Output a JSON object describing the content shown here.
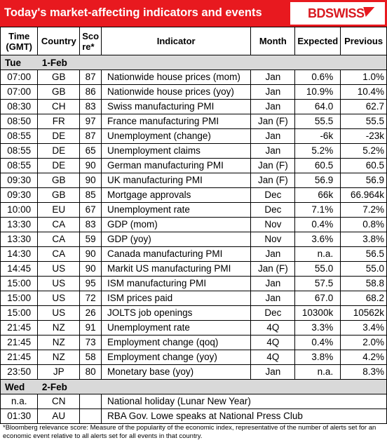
{
  "header": {
    "title": "Today's market-affecting indicators and events",
    "logo": "BDSWISS",
    "brand_color": "#e8191f"
  },
  "columns": {
    "time": "Time\n(GMT)",
    "country": "Country",
    "score": "Sco\nre*",
    "indicator": "Indicator",
    "month": "Month",
    "expected": "Expected",
    "previous": "Previous"
  },
  "days": [
    {
      "weekday": "Tue",
      "date": "1-Feb",
      "rows": [
        {
          "time": "07:00",
          "country": "GB",
          "score": "87",
          "indicator": "Nationwide house prices (mom)",
          "month": "Jan",
          "expected": "0.6%",
          "previous": "1.0%"
        },
        {
          "time": "07:00",
          "country": "GB",
          "score": "86",
          "indicator": "Nationwide house prices (yoy)",
          "month": "Jan",
          "expected": "10.9%",
          "previous": "10.4%"
        },
        {
          "time": "08:30",
          "country": "CH",
          "score": "83",
          "indicator": "Swiss manufacturing PMI",
          "month": "Jan",
          "expected": "64.0",
          "previous": "62.7"
        },
        {
          "time": "08:50",
          "country": "FR",
          "score": "97",
          "indicator": "France manufacturing PMI",
          "month": "Jan (F)",
          "expected": "55.5",
          "previous": "55.5"
        },
        {
          "time": "08:55",
          "country": "DE",
          "score": "87",
          "indicator": "Unemployment (change)",
          "month": "Jan",
          "expected": "-6k",
          "previous": "-23k"
        },
        {
          "time": "08:55",
          "country": "DE",
          "score": "65",
          "indicator": "Unemployment claims",
          "month": "Jan",
          "expected": "5.2%",
          "previous": "5.2%"
        },
        {
          "time": "08:55",
          "country": "DE",
          "score": "90",
          "indicator": "German manufacturing PMI",
          "month": "Jan (F)",
          "expected": "60.5",
          "previous": "60.5"
        },
        {
          "time": "09:30",
          "country": "GB",
          "score": "90",
          "indicator": "UK manufacturing PMI",
          "month": "Jan (F)",
          "expected": "56.9",
          "previous": "56.9"
        },
        {
          "time": "09:30",
          "country": "GB",
          "score": "85",
          "indicator": "Mortgage approvals",
          "month": "Dec",
          "expected": "66k",
          "previous": "66.964k"
        },
        {
          "time": "10:00",
          "country": "EU",
          "score": "67",
          "indicator": "Unemployment rate",
          "month": "Dec",
          "expected": "7.1%",
          "previous": "7.2%"
        },
        {
          "time": "13:30",
          "country": "CA",
          "score": "83",
          "indicator": "GDP (mom)",
          "month": "Nov",
          "expected": "0.4%",
          "previous": "0.8%"
        },
        {
          "time": "13:30",
          "country": "CA",
          "score": "59",
          "indicator": "GDP (yoy)",
          "month": "Nov",
          "expected": "3.6%",
          "previous": "3.8%"
        },
        {
          "time": "14:30",
          "country": "CA",
          "score": "90",
          "indicator": "Canada manufacturing PMI",
          "month": "Jan",
          "expected": "n.a.",
          "previous": "56.5"
        },
        {
          "time": "14:45",
          "country": "US",
          "score": "90",
          "indicator": "Markit US manufacturing PMI",
          "month": "Jan (F)",
          "expected": "55.0",
          "previous": "55.0"
        },
        {
          "time": "15:00",
          "country": "US",
          "score": "95",
          "indicator": "ISM manufacturing PMI",
          "month": "Jan",
          "expected": "57.5",
          "previous": "58.8"
        },
        {
          "time": "15:00",
          "country": "US",
          "score": "72",
          "indicator": "ISM prices paid",
          "month": "Jan",
          "expected": "67.0",
          "previous": "68.2"
        },
        {
          "time": "15:00",
          "country": "US",
          "score": "26",
          "indicator": "JOLTS job openings",
          "month": "Dec",
          "expected": "10300k",
          "previous": "10562k"
        },
        {
          "time": "21:45",
          "country": "NZ",
          "score": "91",
          "indicator": "Unemployment rate",
          "month": "4Q",
          "expected": "3.3%",
          "previous": "3.4%"
        },
        {
          "time": "21:45",
          "country": "NZ",
          "score": "73",
          "indicator": "Employment change (qoq)",
          "month": "4Q",
          "expected": "0.4%",
          "previous": "2.0%"
        },
        {
          "time": "21:45",
          "country": "NZ",
          "score": "58",
          "indicator": "Employment change (yoy)",
          "month": "4Q",
          "expected": "3.8%",
          "previous": "4.2%"
        },
        {
          "time": "23:50",
          "country": "JP",
          "score": "80",
          "indicator": "Monetary base (yoy)",
          "month": "Jan",
          "expected": "n.a.",
          "previous": "8.3%"
        }
      ]
    },
    {
      "weekday": "Wed",
      "date": "2-Feb",
      "rows": [
        {
          "time": "n.a.",
          "country": "CN",
          "score": "",
          "indicator": "National holiday (Lunar New Year)",
          "month": "",
          "expected": "",
          "previous": ""
        },
        {
          "time": "01:30",
          "country": "AU",
          "score": "",
          "indicator": "RBA Gov. Lowe speaks at National Press Club",
          "month": "",
          "expected": "",
          "previous": ""
        }
      ]
    }
  ],
  "footnote": "*Bloomberg relevance score:  Measure of the popularity of the economic index, representative of the number of alerts set for an economic event relative to all alerts set for all events in that country."
}
